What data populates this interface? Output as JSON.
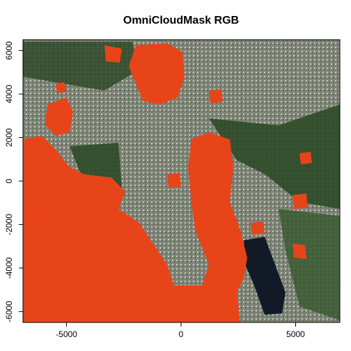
{
  "chart_data": {
    "type": "raster",
    "title": "OmniCloudMask RGB",
    "xlim": [
      -6900,
      6930
    ],
    "xticks": [
      -5000,
      0,
      5000
    ],
    "ylim": [
      -6500,
      6500
    ],
    "yticks": [
      -6000,
      -4000,
      -2000,
      0,
      2000,
      4000,
      6000
    ]
  }
}
